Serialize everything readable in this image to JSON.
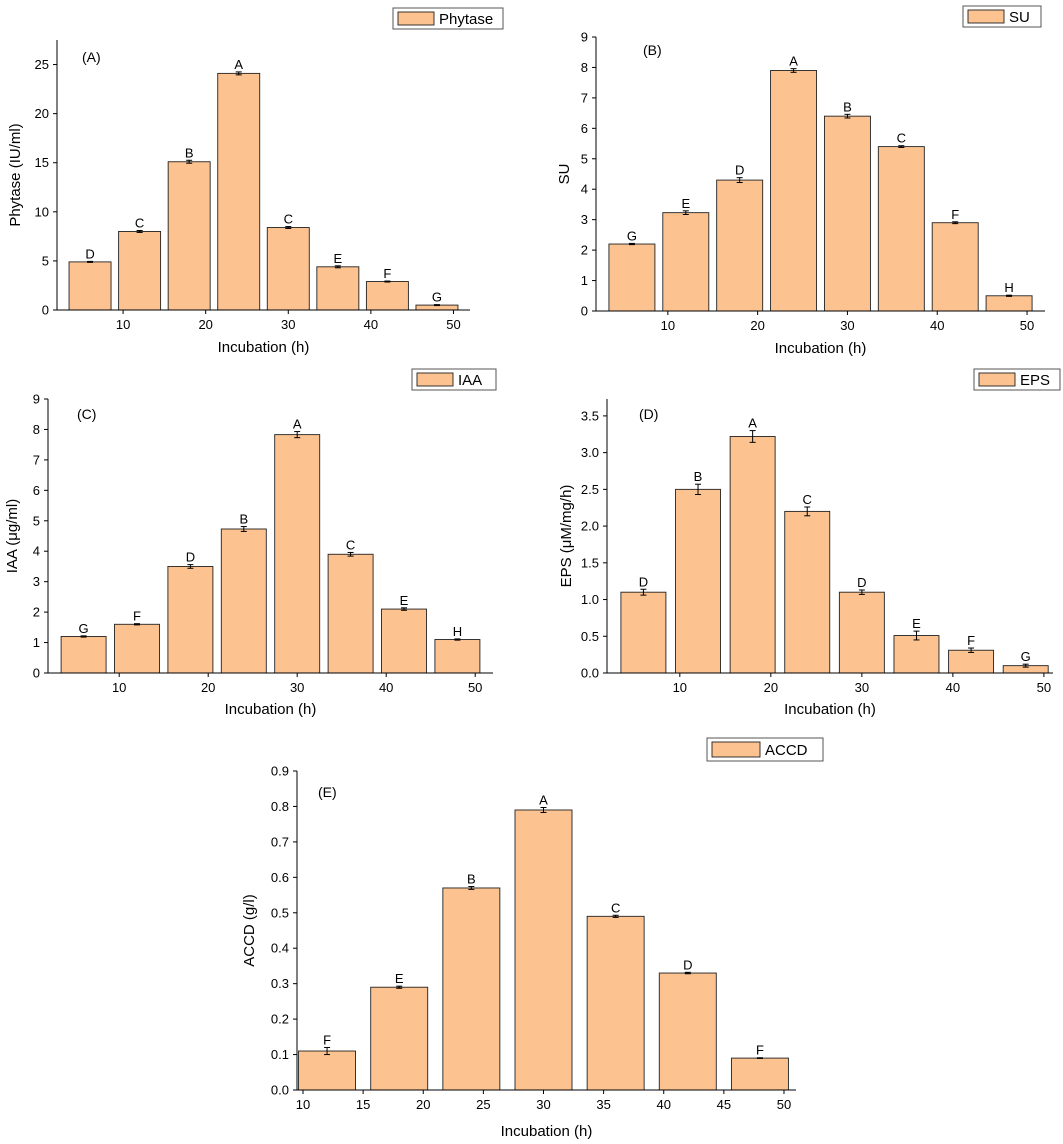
{
  "chart_data": [
    {
      "type": "bar",
      "panel_label": "(A)",
      "legend": "Phytase",
      "xlabel": "Incubation (h)",
      "ylabel": "Phytase (IU/ml)",
      "x": [
        6,
        12,
        18,
        24,
        30,
        36,
        42,
        48
      ],
      "values": [
        4.9,
        8.0,
        15.1,
        24.1,
        8.4,
        4.4,
        2.9,
        0.5
      ],
      "errors": [
        0.05,
        0.1,
        0.15,
        0.15,
        0.1,
        0.1,
        0.05,
        0.05
      ],
      "letters": [
        "D",
        "C",
        "B",
        "A",
        "C",
        "E",
        "F",
        "G"
      ],
      "xticks": [
        10,
        20,
        30,
        40,
        50
      ],
      "yticks": [
        0,
        5,
        10,
        15,
        20,
        25
      ],
      "xlim": [
        2,
        52
      ],
      "ylim": [
        0,
        27.5
      ]
    },
    {
      "type": "bar",
      "panel_label": "(B)",
      "legend": "SU",
      "xlabel": "Incubation (h)",
      "ylabel": "SU",
      "x": [
        6,
        12,
        18,
        24,
        30,
        36,
        42,
        48
      ],
      "values": [
        2.2,
        3.23,
        4.3,
        7.9,
        6.4,
        5.4,
        2.9,
        0.5
      ],
      "errors": [
        0.02,
        0.06,
        0.08,
        0.06,
        0.06,
        0.03,
        0.03,
        0.02
      ],
      "letters": [
        "G",
        "E",
        "D",
        "A",
        "B",
        "C",
        "F",
        "H"
      ],
      "xticks": [
        10,
        20,
        30,
        40,
        50
      ],
      "yticks": [
        0,
        1,
        2,
        3,
        4,
        5,
        6,
        7,
        8,
        9
      ],
      "xlim": [
        2,
        52
      ],
      "ylim": [
        0,
        9
      ]
    },
    {
      "type": "bar",
      "panel_label": "(C)",
      "legend": "IAA",
      "xlabel": "Incubation (h)",
      "ylabel": "IAA (μg/ml)",
      "x": [
        6,
        12,
        18,
        24,
        30,
        36,
        42,
        48
      ],
      "values": [
        1.2,
        1.6,
        3.5,
        4.73,
        7.83,
        3.9,
        2.1,
        1.1
      ],
      "errors": [
        0.02,
        0.02,
        0.06,
        0.08,
        0.1,
        0.06,
        0.04,
        0.02
      ],
      "letters": [
        "G",
        "F",
        "D",
        "B",
        "A",
        "C",
        "E",
        "H"
      ],
      "xticks": [
        10,
        20,
        30,
        40,
        50
      ],
      "yticks": [
        0,
        1,
        2,
        3,
        4,
        5,
        6,
        7,
        8,
        9
      ],
      "xlim": [
        2,
        52
      ],
      "ylim": [
        0,
        9
      ]
    },
    {
      "type": "bar",
      "panel_label": "(D)",
      "legend": "EPS",
      "xlabel": "Incubation (h)",
      "ylabel": "EPS (μM/mg/h)",
      "x": [
        6,
        12,
        18,
        24,
        30,
        36,
        42,
        48
      ],
      "values": [
        1.1,
        2.5,
        3.22,
        2.2,
        1.1,
        0.51,
        0.31,
        0.1
      ],
      "errors": [
        0.04,
        0.07,
        0.08,
        0.06,
        0.03,
        0.06,
        0.03,
        0.02
      ],
      "letters": [
        "D",
        "B",
        "A",
        "C",
        "D",
        "E",
        "F",
        "G"
      ],
      "xticks": [
        10,
        20,
        30,
        40,
        50
      ],
      "yticks": [
        "0.0",
        "0.5",
        "1.0",
        "1.5",
        "2.0",
        "2.5",
        "3.0",
        "3.5"
      ],
      "xlim": [
        2,
        51
      ],
      "ylim": [
        0,
        3.73
      ]
    },
    {
      "type": "bar",
      "panel_label": "(E)",
      "legend": "ACCD",
      "xlabel": "Incubation (h)",
      "ylabel": "ACCD (g/l)",
      "x": [
        12,
        18,
        24,
        30,
        36,
        42,
        48
      ],
      "values": [
        0.11,
        0.29,
        0.57,
        0.79,
        0.49,
        0.33,
        0.09
      ],
      "errors": [
        0.01,
        0.003,
        0.004,
        0.007,
        0.003,
        0.002,
        0.001
      ],
      "letters": [
        "F",
        "E",
        "B",
        "A",
        "C",
        "D",
        "F"
      ],
      "xticks": [
        10,
        15,
        20,
        25,
        30,
        35,
        40,
        45,
        50
      ],
      "yticks": [
        "0.0",
        "0.1",
        "0.2",
        "0.3",
        "0.4",
        "0.5",
        "0.6",
        "0.7",
        "0.8",
        "0.9"
      ],
      "xlim": [
        9.5,
        51
      ],
      "ylim": [
        0,
        0.9
      ]
    }
  ]
}
